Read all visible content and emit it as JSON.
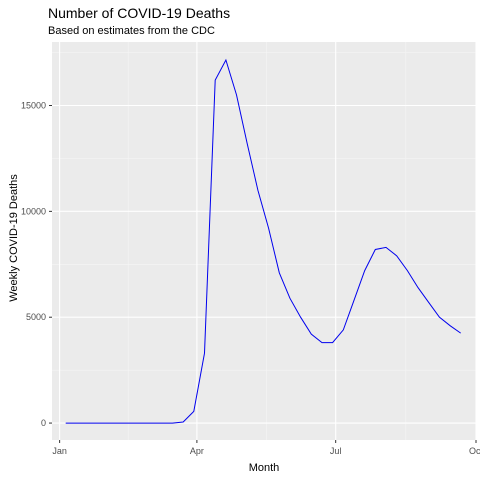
{
  "chart_data": {
    "type": "line",
    "title": "Number of COVID-19 Deaths",
    "subtitle": "Based on estimates from the CDC",
    "xlabel": "Month",
    "ylabel": "Weekly COVID-19 Deaths",
    "x_ticks": [
      {
        "label": "Jan",
        "day": 0
      },
      {
        "label": "Apr",
        "day": 90
      },
      {
        "label": "Jul",
        "day": 181
      },
      {
        "label": "Oct",
        "day": 273
      }
    ],
    "y_ticks": [
      0,
      5000,
      10000,
      15000
    ],
    "xlim": [
      -5,
      273
    ],
    "ylim": [
      -800,
      18000
    ],
    "grid": true,
    "series": [
      {
        "color": "#0000ee",
        "x": [
          4,
          11,
          18,
          25,
          32,
          39,
          46,
          53,
          60,
          67,
          74,
          81,
          88,
          95,
          102,
          109,
          116,
          123,
          130,
          137,
          144,
          151,
          158,
          165,
          172,
          179,
          186,
          193,
          200,
          207,
          214,
          221,
          228,
          235,
          242,
          249,
          256,
          263
        ],
        "y": [
          0,
          0,
          0,
          0,
          0,
          0,
          0,
          0,
          0,
          0,
          0,
          50,
          550,
          3300,
          16200,
          17150,
          15500,
          13200,
          11000,
          9200,
          7100,
          5900,
          5000,
          4200,
          3800,
          3800,
          4400,
          5800,
          7200,
          8200,
          8300,
          7900,
          7200,
          6400,
          5700,
          5000,
          4600,
          4250
        ]
      }
    ]
  }
}
